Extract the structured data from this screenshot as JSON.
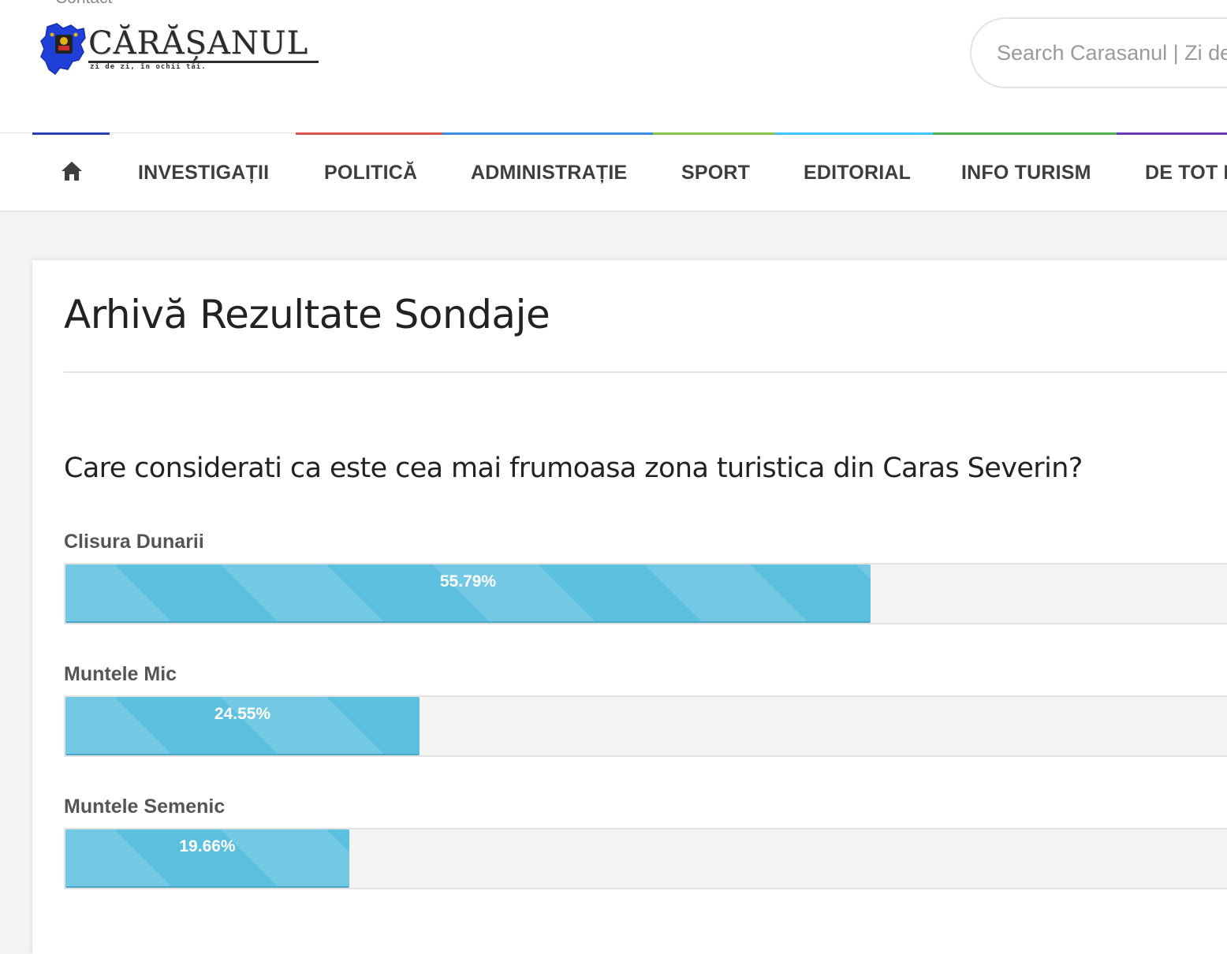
{
  "header": {
    "top_link": "Contact",
    "logo_text": "CĂRĂȘANUL",
    "logo_tagline": "zi de zi, în ochii tăi.",
    "search_placeholder": "Search Carasanul | Zi de zi, în ochii tăi."
  },
  "nav": {
    "home_icon": "home-icon",
    "items": [
      {
        "label": "INVESTIGAȚII",
        "accent": "#2a52be"
      },
      {
        "label": "POLITICĂ",
        "accent": "#d9534f"
      },
      {
        "label": "ADMINISTRAȚIE",
        "accent": "#3a8ee6"
      },
      {
        "label": "SPORT",
        "accent": "#8bc34a"
      },
      {
        "label": "EDITORIAL",
        "accent": "#40c4ff"
      },
      {
        "label": "INFO TURISM",
        "accent": "#4caf50"
      },
      {
        "label": "DE TOT FELUL",
        "accent": "#673ab7"
      }
    ]
  },
  "page": {
    "title": "Arhivă Rezultate Sondaje",
    "poll": {
      "question": "Care considerati ca este cea mai frumoasa zona turistica din Caras Severin?",
      "answers": [
        {
          "label": "Clisura Dunarii",
          "percent_text": "55.79%",
          "percent": 55.79
        },
        {
          "label": "Muntele Mic",
          "percent_text": "24.55%",
          "percent": 24.55
        },
        {
          "label": "Muntele Semenic",
          "percent_text": "19.66%",
          "percent": 19.66
        }
      ]
    }
  },
  "colors": {
    "bar_fill": "#5bc0de",
    "bar_track": "#f4f4f5",
    "text_dark": "#222222",
    "nav_text": "#3e3e3e"
  }
}
